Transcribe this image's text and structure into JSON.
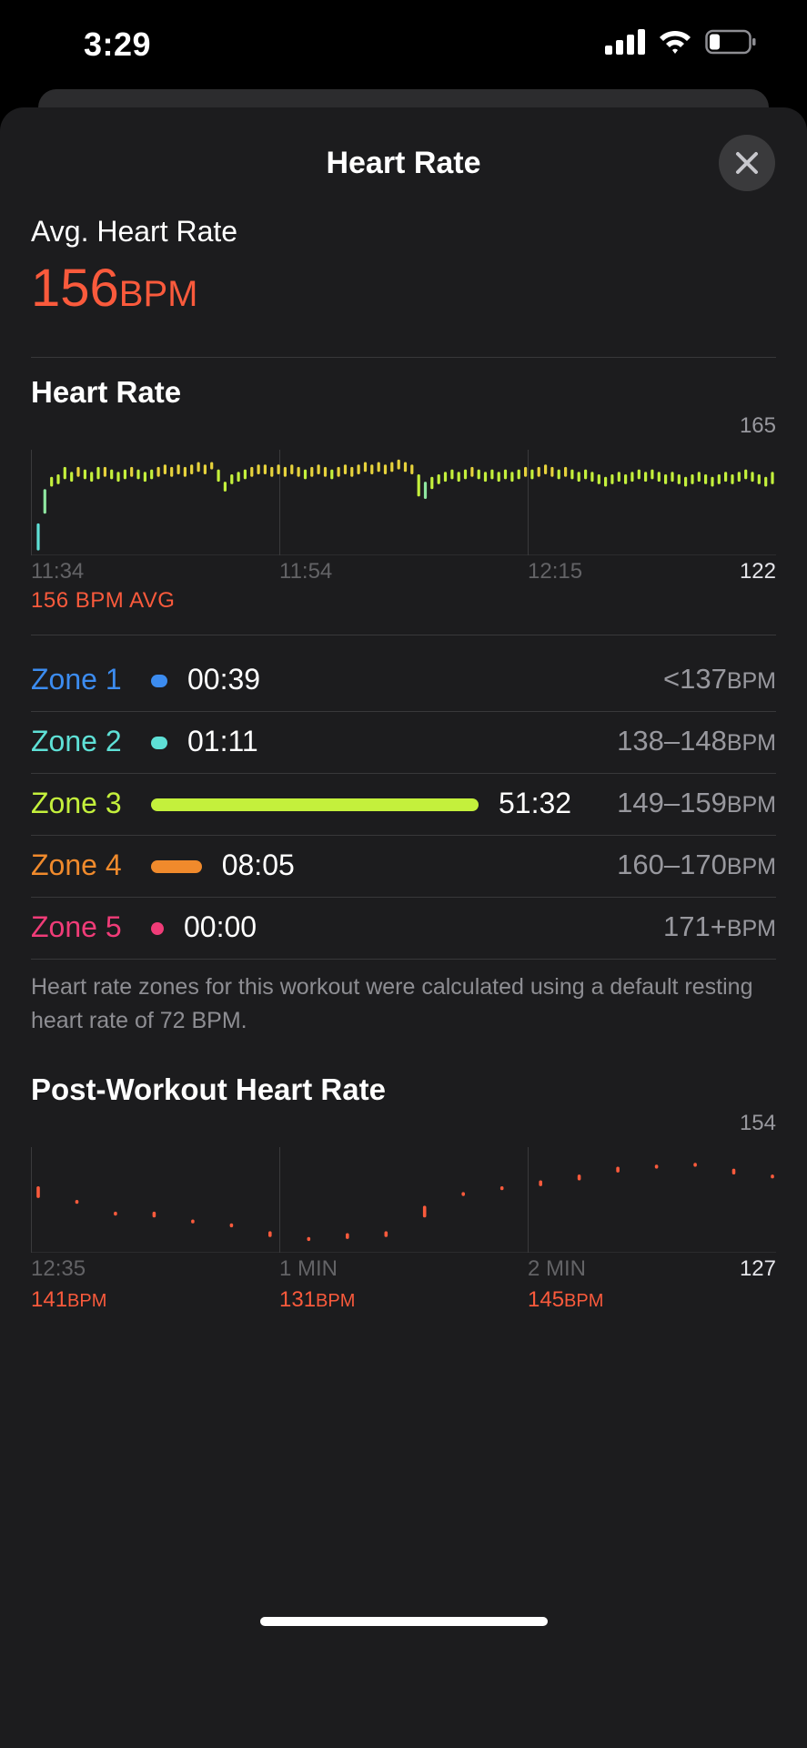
{
  "status_bar": {
    "time": "3:29"
  },
  "sheet": {
    "title": "Heart Rate",
    "close_icon": "close-icon"
  },
  "summary": {
    "avg_label": "Avg. Heart Rate",
    "avg_value": "156",
    "avg_unit": "BPM"
  },
  "heart_rate_chart": {
    "title": "Heart Rate",
    "y_max_label": "165",
    "y_min_label": "122",
    "x_labels": [
      "11:34",
      "11:54",
      "12:15"
    ],
    "avg_note": "156 BPM AVG"
  },
  "zones": [
    {
      "name": "Zone 1",
      "time": "00:39",
      "range": "<137",
      "unit": "BPM",
      "color": "#3c8cf0",
      "fraction": 0.011
    },
    {
      "name": "Zone 2",
      "time": "01:11",
      "range": "138–148",
      "unit": "BPM",
      "color": "#5ee0d6",
      "fraction": 0.019
    },
    {
      "name": "Zone 3",
      "time": "51:32",
      "range": "149–159",
      "unit": "BPM",
      "color": "#c4f03c",
      "fraction": 0.84
    },
    {
      "name": "Zone 4",
      "time": "08:05",
      "range": "160–170",
      "unit": "BPM",
      "color": "#f08a2c",
      "fraction": 0.13
    },
    {
      "name": "Zone 5",
      "time": "00:00",
      "range": "171+",
      "unit": "BPM",
      "color": "#f03c78",
      "fraction": 0.0
    }
  ],
  "footnote": "Heart rate zones for this workout were calculated using a default resting heart rate of 72 BPM.",
  "post_workout_chart": {
    "title": "Post-Workout Heart Rate",
    "y_max_label": "154",
    "y_min_label": "127",
    "x_labels": [
      "12:35",
      "1 MIN",
      "2 MIN"
    ],
    "bpm_values": [
      "141",
      "131",
      "145"
    ],
    "bpm_unit": "BPM"
  },
  "chart_data": [
    {
      "type": "bar",
      "title": "Heart Rate",
      "xlabel": "",
      "ylabel": "",
      "ylim": [
        122,
        165
      ],
      "x_tick_labels": [
        "11:34",
        "11:54",
        "12:15"
      ],
      "series": [
        {
          "values": [
            [
              124,
              135
            ],
            [
              139,
              149
            ],
            [
              150,
              154
            ],
            [
              151,
              155
            ],
            [
              153,
              158
            ],
            [
              152,
              156
            ],
            [
              154,
              158
            ],
            [
              153,
              157
            ],
            [
              152,
              156
            ],
            [
              153,
              158
            ],
            [
              154,
              158
            ],
            [
              153,
              157
            ],
            [
              152,
              156
            ],
            [
              153,
              157
            ],
            [
              154,
              158
            ],
            [
              153,
              157
            ],
            [
              152,
              156
            ],
            [
              153,
              157
            ],
            [
              154,
              158
            ],
            [
              155,
              159
            ],
            [
              154,
              158
            ],
            [
              155,
              159
            ],
            [
              154,
              158
            ],
            [
              155,
              159
            ],
            [
              156,
              160
            ],
            [
              155,
              159
            ],
            [
              157,
              160
            ],
            [
              152,
              157
            ],
            [
              148,
              152
            ],
            [
              151,
              155
            ],
            [
              152,
              156
            ],
            [
              153,
              157
            ],
            [
              154,
              158
            ],
            [
              155,
              159
            ],
            [
              155,
              159
            ],
            [
              154,
              158
            ],
            [
              155,
              159
            ],
            [
              154,
              158
            ],
            [
              155,
              159
            ],
            [
              154,
              158
            ],
            [
              153,
              157
            ],
            [
              154,
              158
            ],
            [
              155,
              159
            ],
            [
              154,
              158
            ],
            [
              153,
              157
            ],
            [
              154,
              158
            ],
            [
              155,
              159
            ],
            [
              154,
              158
            ],
            [
              155,
              159
            ],
            [
              156,
              160
            ],
            [
              155,
              159
            ],
            [
              156,
              160
            ],
            [
              155,
              159
            ],
            [
              156,
              160
            ],
            [
              157,
              161
            ],
            [
              156,
              160
            ],
            [
              155,
              159
            ],
            [
              146,
              155
            ],
            [
              145,
              152
            ],
            [
              149,
              154
            ],
            [
              151,
              155
            ],
            [
              152,
              156
            ],
            [
              153,
              157
            ],
            [
              152,
              156
            ],
            [
              153,
              157
            ],
            [
              154,
              158
            ],
            [
              153,
              157
            ],
            [
              152,
              156
            ],
            [
              153,
              157
            ],
            [
              152,
              156
            ],
            [
              153,
              157
            ],
            [
              152,
              156
            ],
            [
              153,
              157
            ],
            [
              154,
              158
            ],
            [
              153,
              157
            ],
            [
              154,
              158
            ],
            [
              155,
              159
            ],
            [
              154,
              158
            ],
            [
              153,
              157
            ],
            [
              154,
              158
            ],
            [
              153,
              157
            ],
            [
              152,
              156
            ],
            [
              153,
              157
            ],
            [
              152,
              156
            ],
            [
              151,
              155
            ],
            [
              150,
              154
            ],
            [
              151,
              155
            ],
            [
              152,
              156
            ],
            [
              151,
              155
            ],
            [
              152,
              156
            ],
            [
              153,
              157
            ],
            [
              152,
              156
            ],
            [
              153,
              157
            ],
            [
              152,
              156
            ],
            [
              151,
              155
            ],
            [
              152,
              156
            ],
            [
              151,
              155
            ],
            [
              150,
              154
            ],
            [
              151,
              155
            ],
            [
              152,
              156
            ],
            [
              151,
              155
            ],
            [
              150,
              154
            ],
            [
              151,
              155
            ],
            [
              152,
              156
            ],
            [
              151,
              155
            ],
            [
              152,
              156
            ],
            [
              153,
              157
            ],
            [
              152,
              156
            ],
            [
              151,
              155
            ],
            [
              150,
              154
            ],
            [
              151,
              156
            ]
          ]
        }
      ]
    },
    {
      "type": "bar",
      "title": "Post-Workout Heart Rate",
      "xlabel": "",
      "ylabel": "",
      "ylim": [
        127,
        154
      ],
      "x_tick_labels": [
        "12:35",
        "1 MIN",
        "2 MIN"
      ],
      "series": [
        {
          "values": [
            [
              141,
              144
            ],
            [
              139.5,
              140.5
            ],
            [
              136.5,
              137.5
            ],
            [
              136,
              137.5
            ],
            [
              134.5,
              135.5
            ],
            [
              133.5,
              134.5
            ],
            [
              131,
              132.5
            ],
            [
              130,
              131
            ],
            [
              130.5,
              132
            ],
            [
              131,
              132.5
            ],
            [
              136,
              139
            ],
            [
              141.5,
              142.5
            ],
            [
              143,
              144
            ],
            [
              144,
              145.5
            ],
            [
              145.5,
              147
            ],
            [
              147.5,
              149
            ],
            [
              148.5,
              149.5
            ],
            [
              149,
              150
            ],
            [
              147,
              148.5
            ],
            [
              146,
              147
            ]
          ]
        }
      ]
    }
  ]
}
